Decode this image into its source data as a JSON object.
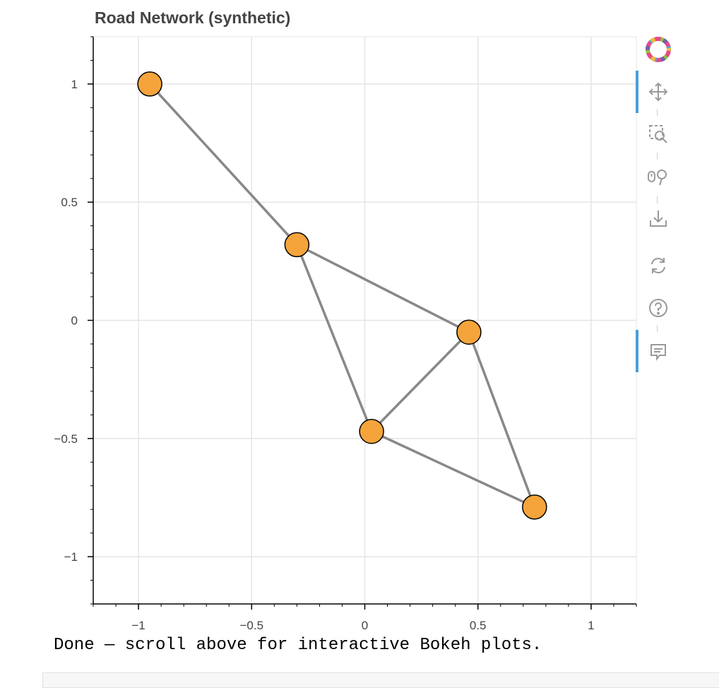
{
  "chart_data": {
    "type": "network",
    "title": "Road Network (synthetic)",
    "xlim": [
      -1.2,
      1.2
    ],
    "ylim": [
      -1.2,
      1.2
    ],
    "xticks": [
      {
        "value": -1,
        "label": "−1"
      },
      {
        "value": -0.5,
        "label": "−0.5"
      },
      {
        "value": 0,
        "label": "0"
      },
      {
        "value": 0.5,
        "label": "0.5"
      },
      {
        "value": 1,
        "label": "1"
      }
    ],
    "yticks": [
      {
        "value": 1,
        "label": "1"
      },
      {
        "value": 0.5,
        "label": "0.5"
      },
      {
        "value": 0,
        "label": "0"
      },
      {
        "value": -0.5,
        "label": "−0.5"
      },
      {
        "value": -1,
        "label": "−1"
      }
    ],
    "grid": true,
    "nodes": [
      {
        "x": -0.95,
        "y": 1.0
      },
      {
        "x": -0.3,
        "y": 0.32
      },
      {
        "x": 0.46,
        "y": -0.05
      },
      {
        "x": 0.03,
        "y": -0.47
      },
      {
        "x": 0.75,
        "y": -0.79
      }
    ],
    "edges": [
      [
        0,
        1
      ],
      [
        1,
        2
      ],
      [
        1,
        3
      ],
      [
        3,
        2
      ],
      [
        2,
        4
      ],
      [
        3,
        4
      ]
    ],
    "node_color": "#f4a43b",
    "edge_color": "#888888"
  },
  "toolbar": {
    "tools": [
      {
        "icon": "bokeh-logo-icon",
        "active": false
      },
      {
        "icon": "pan-icon",
        "active": true
      },
      {
        "icon": "box-zoom-icon",
        "active": false
      },
      {
        "icon": "wheel-zoom-icon",
        "active": false
      },
      {
        "icon": "save-icon",
        "active": false
      },
      {
        "icon": "reset-icon",
        "active": false
      },
      {
        "icon": "help-icon",
        "active": false
      },
      {
        "icon": "hover-icon",
        "active": true
      }
    ]
  },
  "status_text": "Done — scroll above for interactive Bokeh plots."
}
